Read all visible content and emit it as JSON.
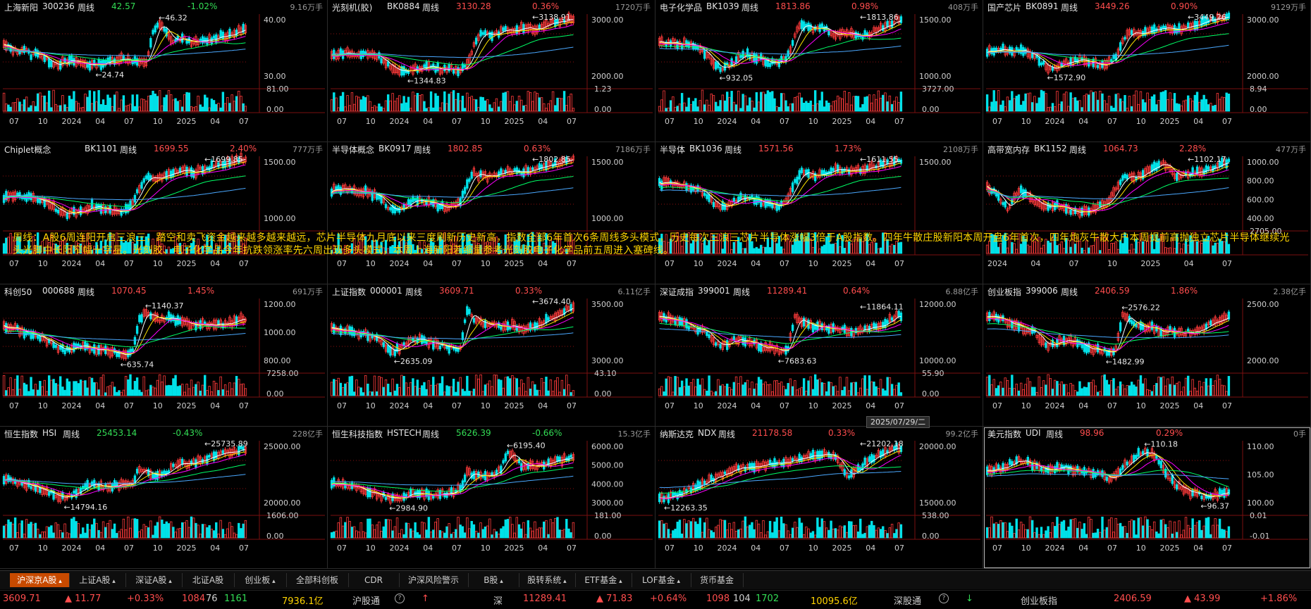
{
  "colors": {
    "up": "#ff3b3b",
    "down": "#00e1e8",
    "ma": [
      "#ffffff",
      "#ffe600",
      "#ff00ff",
      "#00ff66",
      "#4aa8ff"
    ],
    "grid": "#8b1010"
  },
  "panels": [
    {
      "name": "上海新阳",
      "code": "300236",
      "period": "周线",
      "price": "42.57",
      "pct": "-1.02%",
      "dir": "down",
      "vol": "9.16万手",
      "ticks": [
        "40.00",
        "30.00"
      ],
      "vticks": [
        "81.00",
        "0.00"
      ],
      "xlabels": [
        "07",
        "10",
        "2024",
        "04",
        "07",
        "10",
        "2025",
        "04",
        "07"
      ],
      "hi": "46.32",
      "lo": "24.74",
      "shape": [
        0.55,
        0.5,
        0.45,
        0.5,
        0.4,
        0.45,
        0.35,
        0.3,
        0.28,
        0.3,
        0.32,
        0.3,
        0.28,
        0.26,
        0.28,
        0.3,
        0.33,
        0.36,
        0.35,
        0.33,
        0.3,
        0.28,
        0.75,
        0.85,
        0.72,
        0.6,
        0.65,
        0.62,
        0.58,
        0.6,
        0.62,
        0.65,
        0.7,
        0.68,
        0.72,
        0.78
      ]
    },
    {
      "name": "光刻机(胶)",
      "code": "BK0884",
      "period": "周线",
      "price": "3130.28",
      "pct": "0.36%",
      "dir": "up",
      "vol": "1720万手",
      "ticks": [
        "3000.00",
        "2000.00"
      ],
      "vticks": [
        "1.23",
        "0.00"
      ],
      "xlabels": [
        "07",
        "10",
        "2024",
        "04",
        "07",
        "10",
        "2025",
        "04",
        "07"
      ],
      "hi": "3138.91",
      "lo": "1344.83",
      "shape": [
        0.4,
        0.42,
        0.45,
        0.42,
        0.4,
        0.43,
        0.42,
        0.38,
        0.3,
        0.2,
        0.15,
        0.18,
        0.2,
        0.22,
        0.25,
        0.23,
        0.2,
        0.22,
        0.2,
        0.18,
        0.25,
        0.55,
        0.75,
        0.72,
        0.7,
        0.75,
        0.78,
        0.76,
        0.8,
        0.82,
        0.78,
        0.8,
        0.85,
        0.88,
        0.9,
        0.95
      ]
    },
    {
      "name": "电子化学品",
      "code": "BK1039",
      "period": "周线",
      "price": "1813.86",
      "pct": "0.98%",
      "dir": "up",
      "vol": "408万手",
      "ticks": [
        "1500.00",
        "1000.00"
      ],
      "vticks": [
        "3727.00",
        "0.00"
      ],
      "xlabels": [
        "07",
        "10",
        "2024",
        "04",
        "07",
        "10",
        "2025",
        "04",
        "07"
      ],
      "hi": "1813.86",
      "lo": "932.05",
      "shape": [
        0.6,
        0.58,
        0.6,
        0.55,
        0.58,
        0.56,
        0.5,
        0.4,
        0.3,
        0.2,
        0.25,
        0.3,
        0.4,
        0.42,
        0.38,
        0.35,
        0.3,
        0.28,
        0.32,
        0.4,
        0.7,
        0.85,
        0.8,
        0.78,
        0.82,
        0.76,
        0.7,
        0.72,
        0.75,
        0.7,
        0.68,
        0.72,
        0.78,
        0.82,
        0.86,
        0.92
      ]
    },
    {
      "name": "国产芯片",
      "code": "BK0891",
      "period": "周线",
      "price": "3449.26",
      "pct": "0.90%",
      "dir": "up",
      "vol": "9129万手",
      "ticks": [
        "3000.00",
        "2000.00"
      ],
      "vticks": [
        "8.94",
        "0.00"
      ],
      "xlabels": [
        "07",
        "10",
        "2024",
        "04",
        "07",
        "10",
        "2025",
        "04",
        "07"
      ],
      "hi": "3449.26",
      "lo": "1572.90",
      "shape": [
        0.45,
        0.48,
        0.5,
        0.48,
        0.46,
        0.48,
        0.45,
        0.4,
        0.3,
        0.22,
        0.2,
        0.25,
        0.3,
        0.35,
        0.32,
        0.3,
        0.28,
        0.25,
        0.3,
        0.38,
        0.6,
        0.75,
        0.72,
        0.7,
        0.76,
        0.78,
        0.82,
        0.8,
        0.78,
        0.8,
        0.83,
        0.86,
        0.88,
        0.9,
        0.93,
        0.95
      ]
    },
    {
      "name": "Chiplet概念",
      "code": "BK1101",
      "period": "周线",
      "price": "1699.55",
      "pct": "2.40%",
      "dir": "up",
      "vol": "777万手",
      "ticks": [
        "1500.00",
        "1000.00"
      ],
      "vticks": [
        "",
        ""
      ],
      "xlabels": [
        "07",
        "10",
        "2024",
        "04",
        "07",
        "10",
        "2025",
        "04",
        "07"
      ],
      "hi": "1699.85",
      "lo": "",
      "shape": [
        0.4,
        0.42,
        0.44,
        0.42,
        0.4,
        0.38,
        0.35,
        0.3,
        0.22,
        0.15,
        0.18,
        0.2,
        0.25,
        0.28,
        0.26,
        0.22,
        0.2,
        0.18,
        0.22,
        0.3,
        0.55,
        0.72,
        0.7,
        0.68,
        0.72,
        0.75,
        0.8,
        0.78,
        0.76,
        0.8,
        0.84,
        0.86,
        0.88,
        0.9,
        0.93,
        0.96
      ]
    },
    {
      "name": "半导体概念",
      "code": "BK0917",
      "period": "周线",
      "price": "1802.85",
      "pct": "0.63%",
      "dir": "up",
      "vol": "7186万手",
      "ticks": [
        "1500.00",
        "1000.00"
      ],
      "vticks": [
        "",
        ""
      ],
      "xlabels": [
        "07",
        "10",
        "2024",
        "04",
        "07",
        "10",
        "2025",
        "04",
        "07"
      ],
      "hi": "1802.85",
      "lo": "",
      "shape": [
        0.5,
        0.52,
        0.54,
        0.5,
        0.48,
        0.5,
        0.45,
        0.4,
        0.3,
        0.22,
        0.25,
        0.3,
        0.35,
        0.38,
        0.34,
        0.3,
        0.27,
        0.25,
        0.28,
        0.35,
        0.6,
        0.75,
        0.72,
        0.7,
        0.74,
        0.76,
        0.8,
        0.78,
        0.76,
        0.8,
        0.82,
        0.85,
        0.87,
        0.9,
        0.92,
        0.95
      ]
    },
    {
      "name": "半导体",
      "code": "BK1036",
      "period": "周线",
      "price": "1571.56",
      "pct": "1.73%",
      "dir": "up",
      "vol": "2108万手",
      "ticks": [
        "1500.00"
      ],
      "vticks": [
        "",
        ""
      ],
      "xlabels": [
        "07",
        "10",
        "2024",
        "04",
        "07",
        "10",
        "2025",
        "04",
        "07"
      ],
      "hi": "1611.55",
      "lo": "",
      "shape": [
        0.6,
        0.62,
        0.6,
        0.56,
        0.58,
        0.55,
        0.5,
        0.42,
        0.32,
        0.25,
        0.3,
        0.34,
        0.4,
        0.42,
        0.38,
        0.34,
        0.3,
        0.28,
        0.3,
        0.38,
        0.62,
        0.78,
        0.74,
        0.72,
        0.76,
        0.78,
        0.82,
        0.8,
        0.78,
        0.8,
        0.82,
        0.84,
        0.86,
        0.88,
        0.9,
        0.93
      ]
    },
    {
      "name": "高带宽内存",
      "code": "BK1152",
      "period": "周线",
      "price": "1064.73",
      "pct": "2.28%",
      "dir": "up",
      "vol": "477万手",
      "ticks": [
        "1000.00",
        "800.00",
        "600.00",
        "400.00"
      ],
      "vticks": [
        "2705.00",
        ""
      ],
      "xlabels": [
        "2024",
        "04",
        "07",
        "10",
        "2025",
        "04",
        "07"
      ],
      "hi": "1102.17",
      "lo": "",
      "shape": [
        0.55,
        0.5,
        0.35,
        0.25,
        0.4,
        0.5,
        0.42,
        0.35,
        0.3,
        0.28,
        0.3,
        0.25,
        0.22,
        0.2,
        0.18,
        0.2,
        0.25,
        0.3,
        0.35,
        0.55,
        0.7,
        0.72,
        0.68,
        0.75,
        0.8,
        0.85,
        0.9,
        0.82,
        0.7,
        0.72,
        0.75,
        0.78,
        0.8,
        0.82,
        0.86,
        0.92
      ]
    },
    {
      "name": "科创50",
      "code": "000688",
      "period": "周线",
      "price": "1070.45",
      "pct": "1.45%",
      "dir": "up",
      "vol": "691万手",
      "ticks": [
        "1200.00",
        "1000.00",
        "800.00"
      ],
      "vticks": [
        "7258.00",
        "0.00"
      ],
      "xlabels": [
        "07",
        "10",
        "2024",
        "04",
        "07",
        "10",
        "2025",
        "04",
        "07"
      ],
      "hi": "1140.37",
      "lo": "635.74",
      "shape": [
        0.6,
        0.58,
        0.56,
        0.5,
        0.48,
        0.45,
        0.4,
        0.35,
        0.28,
        0.25,
        0.3,
        0.32,
        0.3,
        0.28,
        0.26,
        0.24,
        0.22,
        0.2,
        0.18,
        0.25,
        0.7,
        0.8,
        0.75,
        0.68,
        0.72,
        0.7,
        0.66,
        0.64,
        0.62,
        0.64,
        0.62,
        0.6,
        0.62,
        0.64,
        0.66,
        0.7
      ]
    },
    {
      "name": "上证指数",
      "code": "000001",
      "period": "周线",
      "price": "3609.71",
      "pct": "0.33%",
      "dir": "up",
      "vol": "6.11亿手",
      "ticks": [
        "3500.00",
        "3000.00"
      ],
      "vticks": [
        "43.10",
        "0.00"
      ],
      "xlabels": [
        "07",
        "10",
        "2024",
        "04",
        "07",
        "10",
        "2025",
        "04",
        "07"
      ],
      "hi": "3674.40",
      "lo": "2635.09",
      "shape": [
        0.58,
        0.56,
        0.55,
        0.52,
        0.5,
        0.48,
        0.45,
        0.4,
        0.3,
        0.22,
        0.28,
        0.35,
        0.4,
        0.42,
        0.38,
        0.35,
        0.32,
        0.3,
        0.28,
        0.26,
        0.85,
        0.7,
        0.65,
        0.62,
        0.64,
        0.6,
        0.58,
        0.62,
        0.55,
        0.58,
        0.62,
        0.66,
        0.7,
        0.75,
        0.8,
        0.86
      ]
    },
    {
      "name": "深证成指",
      "code": "399001",
      "period": "周线",
      "price": "11289.41",
      "pct": "0.64%",
      "dir": "up",
      "vol": "6.88亿手",
      "ticks": [
        "12000.00",
        "10000.00"
      ],
      "vticks": [
        "55.90",
        "0.00"
      ],
      "xlabels": [
        "07",
        "10",
        "2024",
        "04",
        "07",
        "10",
        "2025",
        "04",
        "07"
      ],
      "hi": "11864.11",
      "lo": "7683.63",
      "shape": [
        0.75,
        0.72,
        0.7,
        0.65,
        0.62,
        0.58,
        0.55,
        0.5,
        0.4,
        0.3,
        0.35,
        0.4,
        0.42,
        0.38,
        0.35,
        0.3,
        0.28,
        0.26,
        0.24,
        0.28,
        0.75,
        0.68,
        0.62,
        0.58,
        0.6,
        0.56,
        0.54,
        0.56,
        0.5,
        0.52,
        0.56,
        0.58,
        0.6,
        0.64,
        0.7,
        0.75
      ]
    },
    {
      "name": "创业板指",
      "code": "399006",
      "period": "周线",
      "price": "2406.59",
      "pct": "1.86%",
      "dir": "up",
      "vol": "2.38亿手",
      "ticks": [
        "2500.00",
        "2000.00"
      ],
      "vticks": [
        "",
        ""
      ],
      "xlabels": [
        "07",
        "10",
        "2024",
        "04",
        "07",
        "10",
        "2025",
        "04",
        "07"
      ],
      "hi": "2576.22",
      "lo": "1482.99",
      "shape": [
        0.75,
        0.72,
        0.7,
        0.66,
        0.62,
        0.58,
        0.55,
        0.5,
        0.4,
        0.3,
        0.35,
        0.38,
        0.4,
        0.36,
        0.32,
        0.28,
        0.26,
        0.24,
        0.22,
        0.26,
        0.75,
        0.68,
        0.62,
        0.58,
        0.6,
        0.56,
        0.52,
        0.54,
        0.48,
        0.5,
        0.52,
        0.55,
        0.58,
        0.62,
        0.68,
        0.74
      ]
    },
    {
      "name": "恒生指数",
      "code": "HSI",
      "period": "周线",
      "price": "25453.14",
      "pct": "-0.43%",
      "dir": "down",
      "vol": "228亿手",
      "ticks": [
        "25000.00",
        "20000.00"
      ],
      "vticks": [
        "1606.00",
        "0.00"
      ],
      "xlabels": [
        "07",
        "10",
        "2024",
        "04",
        "07",
        "10",
        "2025",
        "04",
        "07"
      ],
      "hi": "25735.89",
      "lo": "14794.16",
      "shape": [
        0.45,
        0.42,
        0.4,
        0.38,
        0.35,
        0.32,
        0.28,
        0.25,
        0.2,
        0.18,
        0.22,
        0.28,
        0.35,
        0.38,
        0.35,
        0.32,
        0.34,
        0.36,
        0.38,
        0.4,
        0.6,
        0.55,
        0.52,
        0.5,
        0.55,
        0.62,
        0.7,
        0.65,
        0.68,
        0.72,
        0.75,
        0.78,
        0.8,
        0.82,
        0.85,
        0.88
      ]
    },
    {
      "name": "恒生科技指数",
      "code": "HSTECH",
      "period": "周线",
      "price": "5626.39",
      "pct": "-0.66%",
      "dir": "down",
      "vol": "15.3亿手",
      "ticks": [
        "6000.00",
        "5000.00",
        "4000.00",
        "3000.00"
      ],
      "vticks": [
        "181.00",
        "0.00"
      ],
      "xlabels": [
        "07",
        "10",
        "2024",
        "04",
        "07",
        "10",
        "2025",
        "04",
        "07"
      ],
      "hi": "6195.40",
      "lo": "2984.90",
      "shape": [
        0.4,
        0.38,
        0.36,
        0.34,
        0.32,
        0.28,
        0.25,
        0.22,
        0.18,
        0.15,
        0.18,
        0.22,
        0.26,
        0.25,
        0.22,
        0.2,
        0.22,
        0.24,
        0.26,
        0.3,
        0.55,
        0.5,
        0.48,
        0.46,
        0.52,
        0.6,
        0.85,
        0.75,
        0.65,
        0.62,
        0.64,
        0.66,
        0.68,
        0.7,
        0.72,
        0.75
      ]
    },
    {
      "name": "纳斯达克",
      "code": "NDX",
      "period": "周线",
      "price": "21178.58",
      "pct": "0.33%",
      "dir": "up",
      "vol": "99.2亿手",
      "ticks": [
        "20000.00",
        "15000.00"
      ],
      "vticks": [
        "538.00",
        "0.00"
      ],
      "xlabels": [
        "07",
        "10",
        "2024",
        "04",
        "07",
        "10",
        "2025",
        "04",
        "07"
      ],
      "hi": "21202.18",
      "lo": "12263.35",
      "shape": [
        0.15,
        0.18,
        0.2,
        0.22,
        0.28,
        0.32,
        0.38,
        0.42,
        0.45,
        0.5,
        0.55,
        0.58,
        0.6,
        0.62,
        0.6,
        0.64,
        0.66,
        0.65,
        0.68,
        0.7,
        0.72,
        0.74,
        0.78,
        0.8,
        0.82,
        0.8,
        0.78,
        0.6,
        0.5,
        0.55,
        0.65,
        0.72,
        0.78,
        0.82,
        0.86,
        0.9
      ]
    },
    {
      "name": "美元指数",
      "code": "UDI",
      "period": "周线",
      "price": "98.96",
      "pct": "0.29%",
      "dir": "up",
      "vol": "0手",
      "ticks": [
        "110.00",
        "105.00",
        "100.00"
      ],
      "vticks": [
        "0.01",
        "-0.01"
      ],
      "xlabels": [
        "07",
        "10",
        "2024",
        "04",
        "07",
        "10",
        "2025",
        "04",
        "07"
      ],
      "hi": "110.18",
      "lo": "96.37",
      "shape": [
        0.55,
        0.58,
        0.6,
        0.65,
        0.7,
        0.72,
        0.68,
        0.62,
        0.6,
        0.58,
        0.6,
        0.62,
        0.6,
        0.58,
        0.56,
        0.55,
        0.52,
        0.5,
        0.45,
        0.5,
        0.62,
        0.7,
        0.78,
        0.85,
        0.82,
        0.75,
        0.6,
        0.45,
        0.35,
        0.3,
        0.25,
        0.22,
        0.2,
        0.2,
        0.22,
        0.25
      ]
    }
  ],
  "banner": "周线：A股6周连阳开启三浪三，踏空和卖飞资金越来越多越来越远，芯片半导体九月底以来三度刷新历史新高，指数全部6年首次6条周线多头模式，历史每次三浪三芯片半导体涨幅3倍于A股指数。四年牛散庄股新阳本周开盘6年首次，四年炮灰牛散大户本周提前高抛独立芯片半导体继续光头光脚中长阳窄幅十字星。光刻胶、电子化学品今年抗跌领涨率先六周出现多头模式，本周上海新阳若缩量参考光刻胶电子化学品前五周进入塞碑线。",
  "date_box": "2025/07/29/二",
  "tabs": [
    "沪深京A股",
    "上证A股",
    "深证A股",
    "北证A股",
    "创业板",
    "全部科创板",
    "CDR",
    "沪深风险警示",
    "B股",
    "股转系统",
    "ETF基金",
    "LOF基金",
    "货币基金"
  ],
  "status": {
    "sh_index": "3609.71",
    "sh_chg": "▲ 11.77",
    "sh_pct": "+0.33%",
    "sh_up": "1084",
    "sh_flat": "76",
    "sh_down": "1161",
    "sh_amt": "7936.1亿",
    "hgt_label": "沪股通",
    "sz_label": "深",
    "sz_index": "11289.41",
    "sz_chg": "▲ 71.83",
    "sz_pct": "+0.64%",
    "sz_up": "1098",
    "sz_flat": "104",
    "sz_down": "1702",
    "sz_amt": "10095.6亿",
    "sgt_label": "深股通",
    "cyb_label": "创业板指",
    "cyb_index": "2406.59",
    "cyb_chg": "▲ 43.99",
    "cyb_pct": "+1.86%"
  }
}
